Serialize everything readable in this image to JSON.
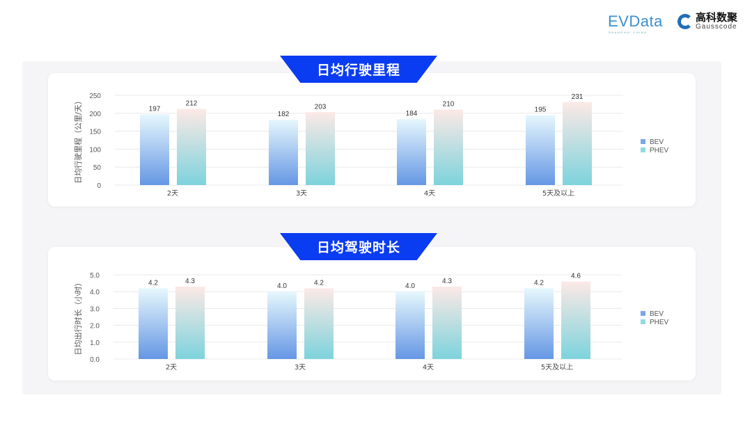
{
  "logos": {
    "evdata": "EVData",
    "evdata_sub": "SHANGHAI CHINA",
    "gauss_cn": "高科数聚",
    "gauss_en": "Gausscode"
  },
  "colors": {
    "banner": "#0a3cf2",
    "bev_top": "#e6f7fd",
    "bev_bottom": "#6597e4",
    "phev_top": "#fce9e6",
    "phev_bottom": "#7dd3dc"
  },
  "chart_data": [
    {
      "type": "bar",
      "title": "日均行驶里程",
      "ylabel": "日均行驶里程（公里/天）",
      "xlabel": "",
      "categories": [
        "2天",
        "3天",
        "4天",
        "5天及以上"
      ],
      "series": [
        {
          "name": "BEV",
          "values": [
            197,
            182,
            184,
            195
          ]
        },
        {
          "name": "PHEV",
          "values": [
            212,
            203,
            210,
            231
          ]
        }
      ],
      "ylim": [
        0,
        250
      ],
      "yticks": [
        "0",
        "50",
        "100",
        "150",
        "200",
        "250"
      ],
      "decimals": 0,
      "grid": true,
      "legend": "right"
    },
    {
      "type": "bar",
      "title": "日均驾驶时长",
      "ylabel": "日均出行时长（小时）",
      "xlabel": "",
      "categories": [
        "2天",
        "3天",
        "4天",
        "5天及以上"
      ],
      "series": [
        {
          "name": "BEV",
          "values": [
            4.2,
            4.0,
            4.0,
            4.2
          ]
        },
        {
          "name": "PHEV",
          "values": [
            4.3,
            4.2,
            4.3,
            4.6
          ]
        }
      ],
      "ylim": [
        0,
        5
      ],
      "yticks": [
        "0.0",
        "1.0",
        "2.0",
        "3.0",
        "4.0",
        "5.0"
      ],
      "decimals": 1,
      "grid": true,
      "legend": "right"
    }
  ]
}
